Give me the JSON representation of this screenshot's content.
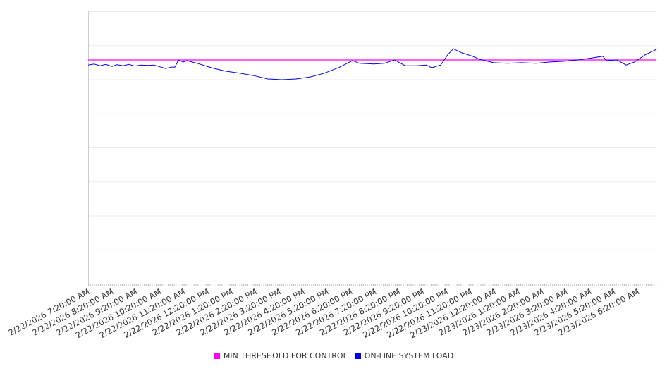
{
  "chart_data": {
    "type": "line",
    "title": "",
    "xlabel": "",
    "ylabel": "",
    "ylim": [
      0,
      8
    ],
    "grid": true,
    "x_unit": "hours since 2/22/2026 7:20:00 AM",
    "xlim": [
      0,
      23.78
    ],
    "x_tick_labels": [
      "2/22/2026 7:20:00 AM",
      "2/22/2026 8:20:00 AM",
      "2/22/2026 9:20:00 AM",
      "2/22/2026 10:20:00 AM",
      "2/22/2026 11:20:00 AM",
      "2/22/2026 12:20:00 PM",
      "2/22/2026 1:20:00 PM",
      "2/22/2026 2:20:00 PM",
      "2/22/2026 3:20:00 PM",
      "2/22/2026 4:20:00 PM",
      "2/22/2026 5:20:00 PM",
      "2/22/2026 6:20:00 PM",
      "2/22/2026 7:20:00 PM",
      "2/22/2026 8:20:00 PM",
      "2/22/2026 9:20:00 PM",
      "2/22/2026 10:20:00 PM",
      "2/22/2026 11:20:00 PM",
      "2/23/2026 12:20:00 AM",
      "2/23/2026 1:20:00 AM",
      "2/23/2026 2:20:00 AM",
      "2/23/2026 3:20:00 AM",
      "2/23/2026 4:20:00 AM",
      "2/23/2026 5:20:00 AM",
      "2/23/2026 6:20:00 AM"
    ],
    "legend_position": "bottom",
    "series": [
      {
        "name": "MIN THRESHOLD FOR CONTROL",
        "color": "#ff00ff",
        "x": [
          0,
          23.78
        ],
        "y": [
          6.57,
          6.57
        ]
      },
      {
        "name": "ON-LINE SYSTEM LOAD",
        "color": "#0000ee",
        "x": [
          0,
          0.25,
          0.5,
          0.74,
          1.0,
          1.2,
          1.47,
          1.7,
          1.95,
          2.21,
          2.5,
          2.75,
          2.95,
          3.24,
          3.5,
          3.63,
          3.78,
          3.98,
          4.13,
          4.57,
          5.16,
          5.75,
          6.34,
          6.93,
          7.52,
          8.11,
          8.7,
          9.29,
          9.88,
          10.47,
          11.06,
          11.36,
          11.95,
          12.39,
          12.83,
          13.0,
          13.27,
          13.72,
          14.16,
          14.37,
          14.75,
          15.04,
          15.28,
          15.63,
          16.08,
          16.37,
          16.96,
          17.55,
          18.14,
          18.73,
          19.32,
          19.91,
          20.5,
          21.09,
          21.53,
          21.68,
          22.12,
          22.51,
          22.86,
          23.3,
          23.78
        ],
        "y": [
          6.42,
          6.45,
          6.4,
          6.44,
          6.38,
          6.43,
          6.4,
          6.44,
          6.39,
          6.42,
          6.41,
          6.42,
          6.38,
          6.32,
          6.36,
          6.36,
          6.57,
          6.51,
          6.55,
          6.47,
          6.34,
          6.24,
          6.18,
          6.11,
          6.01,
          5.99,
          6.01,
          6.07,
          6.18,
          6.34,
          6.55,
          6.47,
          6.45,
          6.47,
          6.57,
          6.5,
          6.4,
          6.4,
          6.42,
          6.34,
          6.42,
          6.72,
          6.9,
          6.78,
          6.68,
          6.59,
          6.49,
          6.47,
          6.49,
          6.47,
          6.51,
          6.53,
          6.57,
          6.63,
          6.68,
          6.55,
          6.57,
          6.42,
          6.51,
          6.72,
          6.88
        ]
      }
    ]
  }
}
